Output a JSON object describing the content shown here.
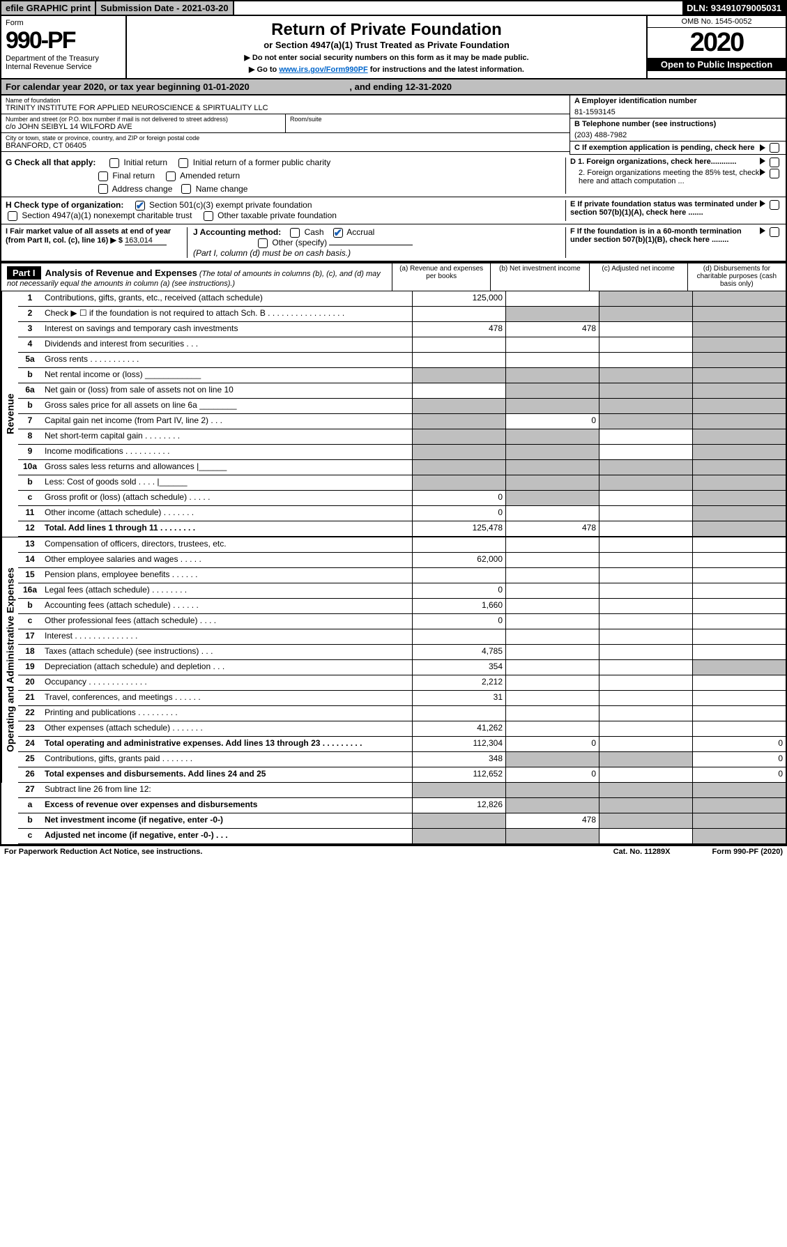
{
  "topbar": {
    "efile": "efile GRAPHIC print",
    "subdate_label": "Submission Date - ",
    "subdate": "2021-03-20",
    "dln_label": "DLN: ",
    "dln": "93491079005031"
  },
  "header": {
    "form_word": "Form",
    "form_no": "990-PF",
    "dept": "Department of the Treasury",
    "irs": "Internal Revenue Service",
    "title": "Return of Private Foundation",
    "subtitle": "or Section 4947(a)(1) Trust Treated as Private Foundation",
    "note1": "▶ Do not enter social security numbers on this form as it may be made public.",
    "note2_pre": "▶ Go to ",
    "note2_link": "www.irs.gov/Form990PF",
    "note2_post": " for instructions and the latest information.",
    "omb": "OMB No. 1545-0052",
    "year": "2020",
    "open": "Open to Public Inspection"
  },
  "calyear": {
    "pre": "For calendar year 2020, or tax year beginning ",
    "begin": "01-01-2020",
    "mid": ", and ending ",
    "end": "12-31-2020"
  },
  "info": {
    "name_lbl": "Name of foundation",
    "name": "TRINITY INSTITUTE FOR APPLIED NEUROSCIENCE & SPIRTUALITY LLC",
    "addr_lbl": "Number and street (or P.O. box number if mail is not delivered to street address)",
    "addr": "c/o JOHN SEIBYL 14 WILFORD AVE",
    "room_lbl": "Room/suite",
    "city_lbl": "City or town, state or province, country, and ZIP or foreign postal code",
    "city": "BRANFORD, CT  06405",
    "ein_lbl": "A Employer identification number",
    "ein": "81-1593145",
    "tel_lbl": "B Telephone number (see instructions)",
    "tel": "(203) 488-7982",
    "c_lbl": "C If exemption application is pending, check here",
    "d1": "D 1. Foreign organizations, check here............",
    "d2": "2. Foreign organizations meeting the 85% test, check here and attach computation ...",
    "e_lbl": "E  If private foundation status was terminated under section 507(b)(1)(A), check here .......",
    "f_lbl": "F  If the foundation is in a 60-month termination under section 507(b)(1)(B), check here ........"
  },
  "checks": {
    "g_lbl": "G Check all that apply:",
    "initial": "Initial return",
    "initial_former": "Initial return of a former public charity",
    "final": "Final return",
    "amended": "Amended return",
    "addr_chg": "Address change",
    "name_chg": "Name change",
    "h_lbl": "H Check type of organization:",
    "h1": "Section 501(c)(3) exempt private foundation",
    "h2": "Section 4947(a)(1) nonexempt charitable trust",
    "h3": "Other taxable private foundation",
    "i_lbl": "I Fair market value of all assets at end of year (from Part II, col. (c), line 16) ▶ $",
    "i_val": "163,014",
    "j_lbl": "J Accounting method:",
    "j_cash": "Cash",
    "j_accrual": "Accrual",
    "j_other": "Other (specify)",
    "j_note": "(Part I, column (d) must be on cash basis.)"
  },
  "part1": {
    "label": "Part I",
    "title": "Analysis of Revenue and Expenses",
    "sub": "(The total of amounts in columns (b), (c), and (d) may not necessarily equal the amounts in column (a) (see instructions).)",
    "col_a": "(a)   Revenue and expenses per books",
    "col_b": "(b)  Net investment income",
    "col_c": "(c)  Adjusted net income",
    "col_d": "(d)  Disbursements for charitable purposes (cash basis only)"
  },
  "rev_label": "Revenue",
  "exp_label": "Operating and Administrative Expenses",
  "rows_rev": [
    {
      "n": "1",
      "d": "Contributions, gifts, grants, etc., received (attach schedule)",
      "a": "125,000",
      "b": "",
      "c": "s",
      "ds": "s"
    },
    {
      "n": "2",
      "d": "Check ▶ ☐ if the foundation is not required to attach Sch. B    .  .  .  .  .  .  .  .  .  .  .  .  .  .  .  .  .",
      "a": "",
      "b": "s",
      "c": "s",
      "ds": "s"
    },
    {
      "n": "3",
      "d": "Interest on savings and temporary cash investments",
      "a": "478",
      "b": "478",
      "c": "",
      "ds": "s"
    },
    {
      "n": "4",
      "d": "Dividends and interest from securities    .   .   .",
      "a": "",
      "b": "",
      "c": "",
      "ds": "s"
    },
    {
      "n": "5a",
      "d": "Gross rents     .   .   .   .   .   .   .   .   .   .   .",
      "a": "",
      "b": "",
      "c": "",
      "ds": "s"
    },
    {
      "n": "b",
      "d": "Net rental income or (loss)   ____________",
      "a": "s",
      "b": "s",
      "c": "s",
      "ds": "s"
    },
    {
      "n": "6a",
      "d": "Net gain or (loss) from sale of assets not on line 10",
      "a": "",
      "b": "s",
      "c": "s",
      "ds": "s"
    },
    {
      "n": "b",
      "d": "Gross sales price for all assets on line 6a ________",
      "a": "s",
      "b": "s",
      "c": "s",
      "ds": "s"
    },
    {
      "n": "7",
      "d": "Capital gain net income (from Part IV, line 2)    .   .   .",
      "a": "s",
      "b": "0",
      "c": "s",
      "ds": "s"
    },
    {
      "n": "8",
      "d": "Net short-term capital gain    .   .   .   .   .   .   .   .",
      "a": "s",
      "b": "s",
      "c": "",
      "ds": "s"
    },
    {
      "n": "9",
      "d": "Income modifications   .   .   .   .   .   .   .   .   .   .",
      "a": "s",
      "b": "s",
      "c": "",
      "ds": "s"
    },
    {
      "n": "10a",
      "d": "Gross sales less returns and allowances  |______",
      "a": "s",
      "b": "s",
      "c": "s",
      "ds": "s"
    },
    {
      "n": "b",
      "d": "Less: Cost of goods sold     .   .   .   .    |______",
      "a": "s",
      "b": "s",
      "c": "s",
      "ds": "s"
    },
    {
      "n": "c",
      "d": "Gross profit or (loss) (attach schedule)    .   .   .   .   .",
      "a": "0",
      "b": "s",
      "c": "",
      "ds": "s"
    },
    {
      "n": "11",
      "d": "Other income (attach schedule)    .   .   .   .   .   .   .",
      "a": "0",
      "b": "",
      "c": "",
      "ds": "s"
    },
    {
      "n": "12",
      "d": "Total. Add lines 1 through 11    .   .   .   .   .   .   .   .",
      "a": "125,478",
      "b": "478",
      "c": "",
      "ds": "s",
      "bold": true
    }
  ],
  "rows_exp": [
    {
      "n": "13",
      "d": "Compensation of officers, directors, trustees, etc.",
      "a": "",
      "b": "",
      "c": "",
      "ds": ""
    },
    {
      "n": "14",
      "d": "Other employee salaries and wages    .   .   .   .   .",
      "a": "62,000",
      "b": "",
      "c": "",
      "ds": ""
    },
    {
      "n": "15",
      "d": "Pension plans, employee benefits    .   .   .   .   .   .",
      "a": "",
      "b": "",
      "c": "",
      "ds": ""
    },
    {
      "n": "16a",
      "d": "Legal fees (attach schedule)  .   .   .   .   .   .   .   .",
      "a": "0",
      "b": "",
      "c": "",
      "ds": ""
    },
    {
      "n": "b",
      "d": "Accounting fees (attach schedule)   .   .   .   .   .   .",
      "a": "1,660",
      "b": "",
      "c": "",
      "ds": ""
    },
    {
      "n": "c",
      "d": "Other professional fees (attach schedule)    .   .   .   .",
      "a": "0",
      "b": "",
      "c": "",
      "ds": ""
    },
    {
      "n": "17",
      "d": "Interest    .   .   .   .   .   .   .   .   .   .   .   .   .   .",
      "a": "",
      "b": "",
      "c": "",
      "ds": ""
    },
    {
      "n": "18",
      "d": "Taxes (attach schedule) (see instructions)     .   .   .",
      "a": "4,785",
      "b": "",
      "c": "",
      "ds": ""
    },
    {
      "n": "19",
      "d": "Depreciation (attach schedule) and depletion    .   .   .",
      "a": "354",
      "b": "",
      "c": "",
      "ds": "s"
    },
    {
      "n": "20",
      "d": "Occupancy  .   .   .   .   .   .   .   .   .   .   .   .   .",
      "a": "2,212",
      "b": "",
      "c": "",
      "ds": ""
    },
    {
      "n": "21",
      "d": "Travel, conferences, and meetings   .   .   .   .   .   .",
      "a": "31",
      "b": "",
      "c": "",
      "ds": ""
    },
    {
      "n": "22",
      "d": "Printing and publications   .   .   .   .   .   .   .   .   .",
      "a": "",
      "b": "",
      "c": "",
      "ds": ""
    },
    {
      "n": "23",
      "d": "Other expenses (attach schedule)   .   .   .   .   .   .   .",
      "a": "41,262",
      "b": "",
      "c": "",
      "ds": ""
    },
    {
      "n": "24",
      "d": "Total operating and administrative expenses. Add lines 13 through 23   .   .   .   .   .   .   .   .   .",
      "a": "112,304",
      "b": "0",
      "c": "",
      "ds": "0",
      "bold": true
    },
    {
      "n": "25",
      "d": "Contributions, gifts, grants paid     .   .   .   .   .   .   .",
      "a": "348",
      "b": "s",
      "c": "s",
      "ds": "0"
    },
    {
      "n": "26",
      "d": "Total expenses and disbursements. Add lines 24 and 25",
      "a": "112,652",
      "b": "0",
      "c": "",
      "ds": "0",
      "bold": true
    }
  ],
  "rows_bot": [
    {
      "n": "27",
      "d": "Subtract line 26 from line 12:",
      "a": "s",
      "b": "s",
      "c": "s",
      "ds": "s"
    },
    {
      "n": "a",
      "d": "Excess of revenue over expenses and disbursements",
      "a": "12,826",
      "b": "s",
      "c": "s",
      "ds": "s",
      "bold": true
    },
    {
      "n": "b",
      "d": "Net investment income (if negative, enter -0-)",
      "a": "s",
      "b": "478",
      "c": "s",
      "ds": "s",
      "bold": true
    },
    {
      "n": "c",
      "d": "Adjusted net income (if negative, enter -0-)   .   .   .",
      "a": "s",
      "b": "s",
      "c": "",
      "ds": "s",
      "bold": true
    }
  ],
  "footer": {
    "left": "For Paperwork Reduction Act Notice, see instructions.",
    "mid": "Cat. No. 11289X",
    "right": "Form 990-PF (2020)"
  }
}
